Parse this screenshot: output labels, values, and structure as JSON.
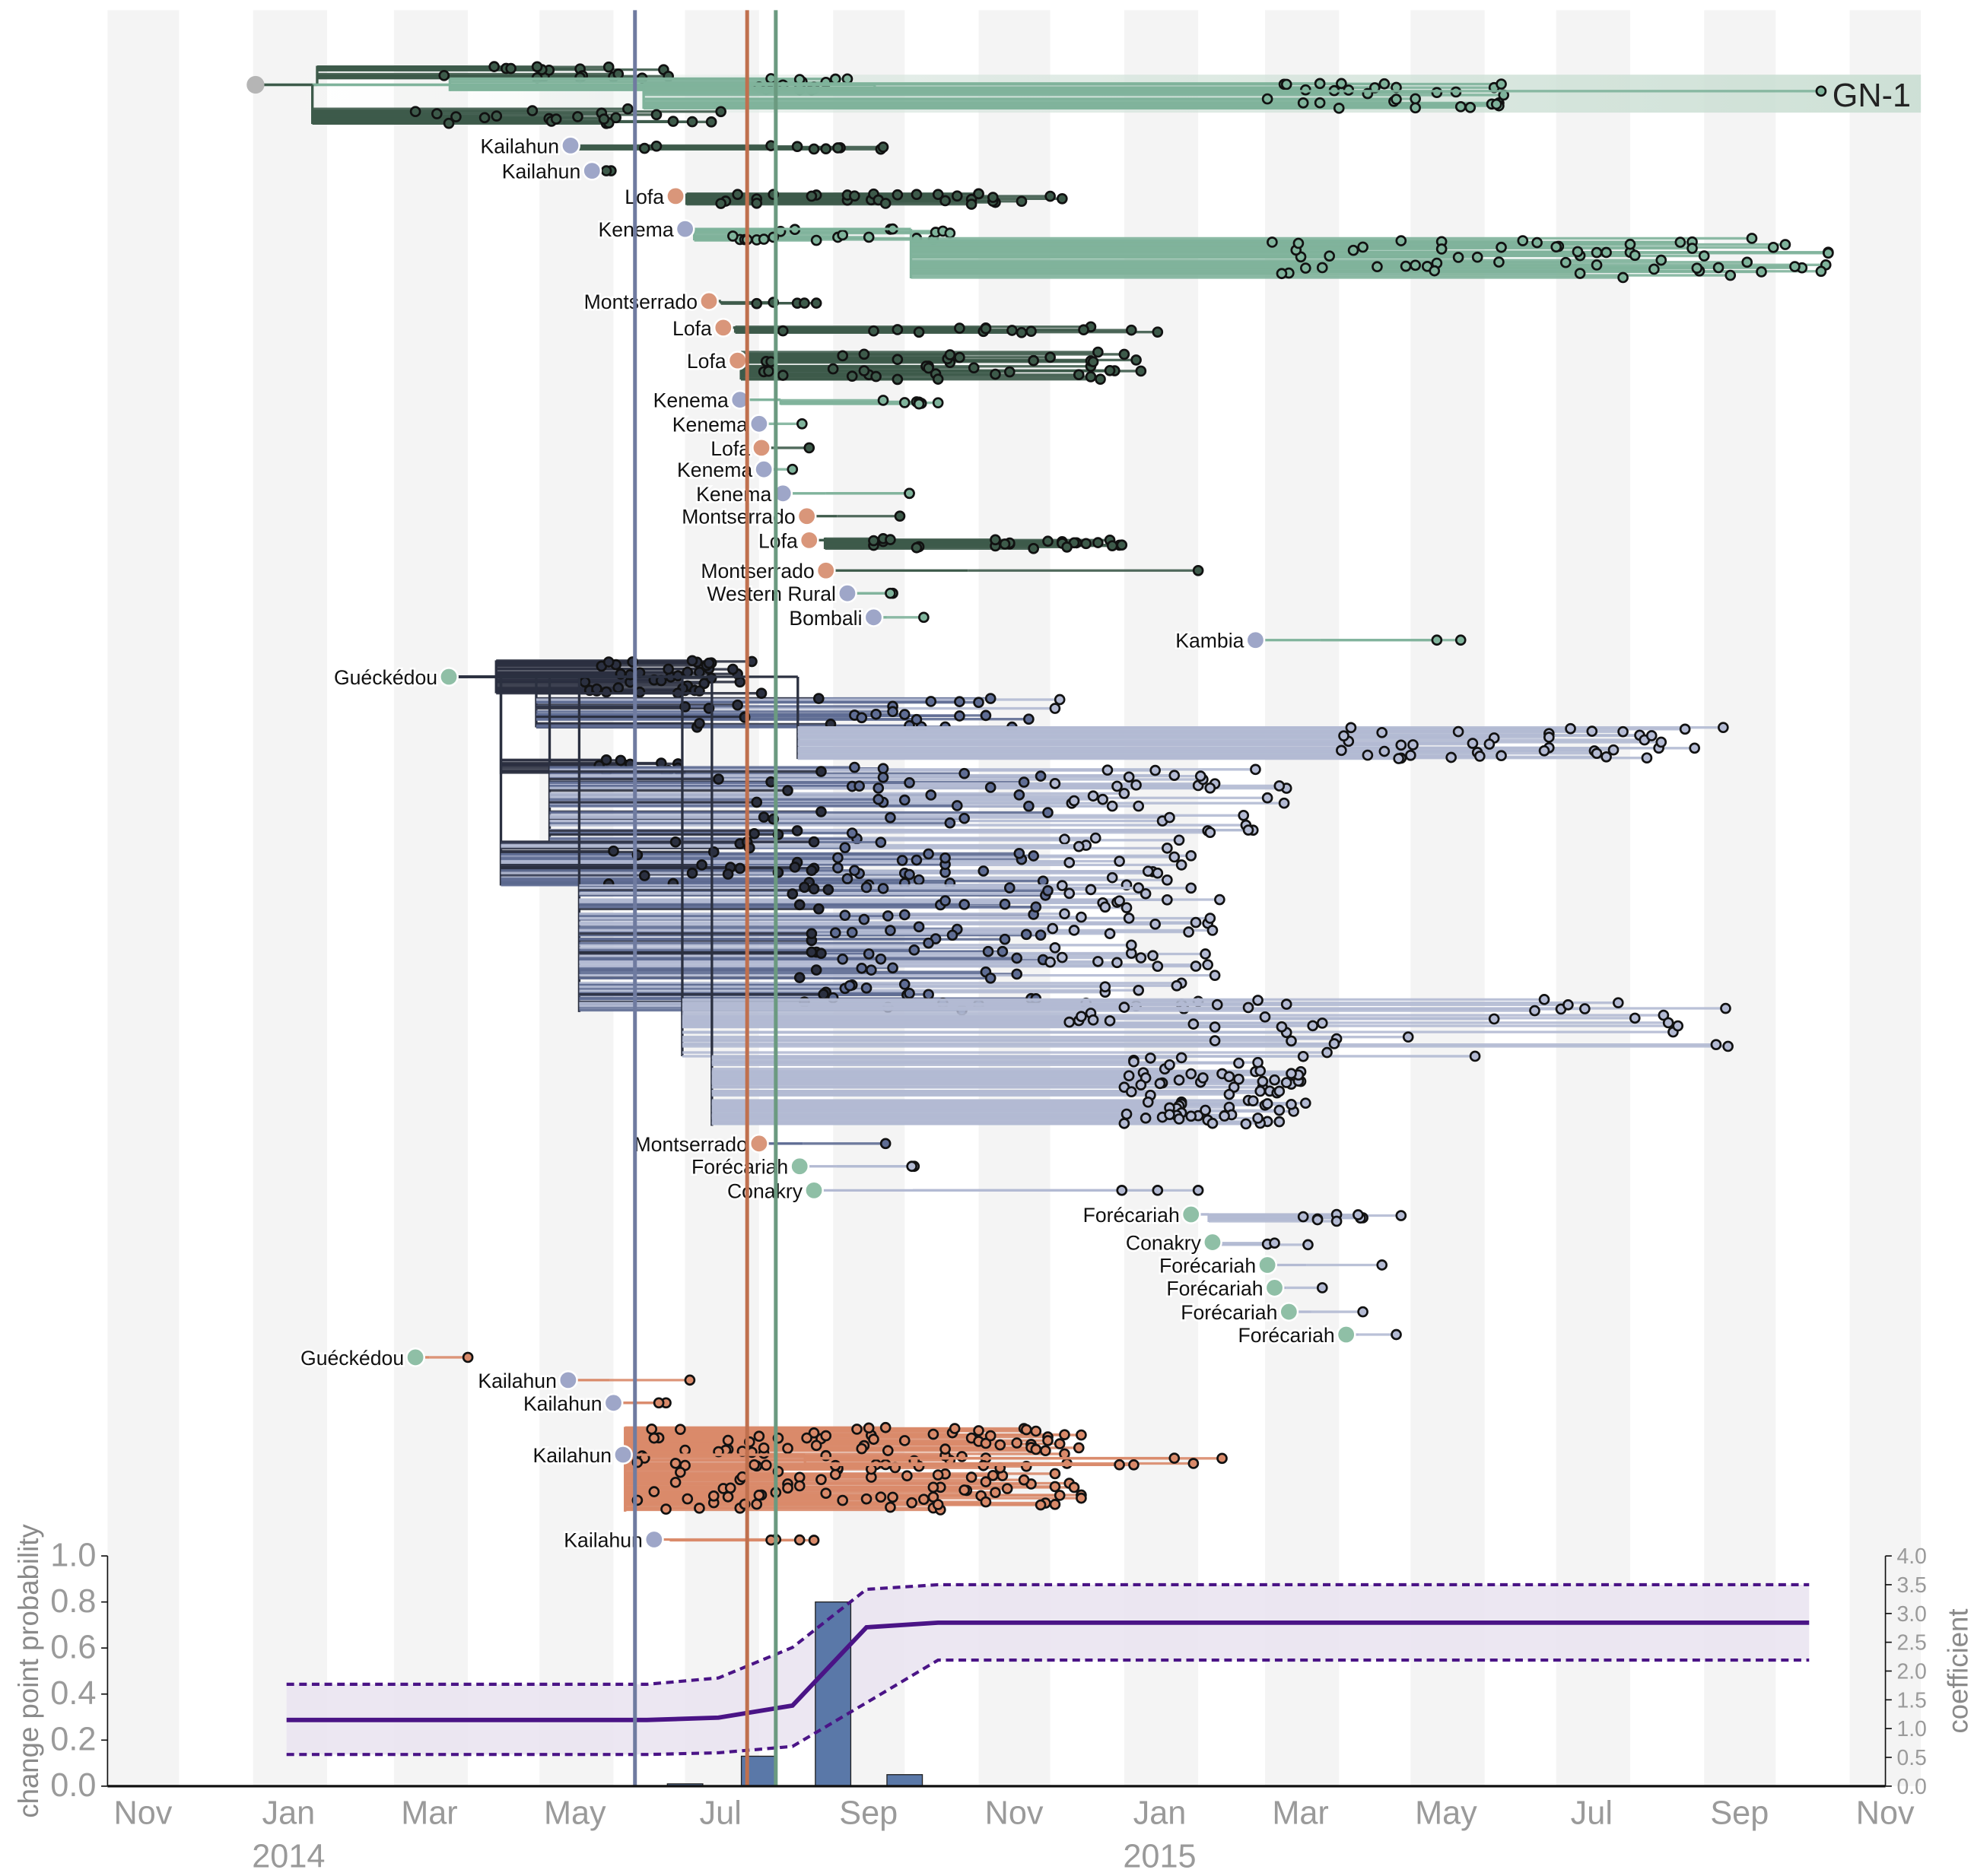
{
  "chart_data": [
    {
      "type": "tree",
      "x_axis": {
        "ticks": [
          {
            "date": "2013-11-01",
            "label": "Nov"
          },
          {
            "date": "2014-01-01",
            "label": "Jan"
          },
          {
            "date": "2014-03-01",
            "label": "Mar"
          },
          {
            "date": "2014-05-01",
            "label": "May"
          },
          {
            "date": "2014-07-01",
            "label": "Jul"
          },
          {
            "date": "2014-09-01",
            "label": "Sep"
          },
          {
            "date": "2014-11-01",
            "label": "Nov"
          },
          {
            "date": "2015-01-01",
            "label": "Jan"
          },
          {
            "date": "2015-03-01",
            "label": "Mar"
          },
          {
            "date": "2015-05-01",
            "label": "May"
          },
          {
            "date": "2015-07-01",
            "label": "Jul"
          },
          {
            "date": "2015-09-01",
            "label": "Sep"
          },
          {
            "date": "2015-11-01",
            "label": "Nov"
          }
        ],
        "years": [
          {
            "date": "2014-01-01",
            "label": "2014"
          },
          {
            "date": "2015-01-01",
            "label": "2015"
          }
        ],
        "range": [
          "2013-11-01",
          "2015-11-30"
        ],
        "month_stripes": true
      },
      "change_lines": [
        {
          "date": "2014-06-10",
          "color": "#6f7ba0"
        },
        {
          "date": "2014-07-27",
          "color": "#c0704e"
        },
        {
          "date": "2014-08-08",
          "color": "#6b9a80"
        }
      ],
      "colors": {
        "sierra_leone": "#9ea6c8",
        "liberia": "#d9967a",
        "guinea": "#8fbfa6",
        "root": "#b5b5b5",
        "dark_green": "#3d5a4a",
        "light_green": "#7fb39b",
        "navy": "#2b3040",
        "slate": "#5f6d94",
        "lavender": "#b3bad3",
        "orange": "#d98a6a"
      },
      "gn1": {
        "label": "GN-1",
        "origin": "2014-01-02",
        "groups": [
          {
            "from": "2014-03-15",
            "to": "2014-06-25",
            "n": 18,
            "color": "#3d5a4a"
          },
          {
            "from": "2014-08-01",
            "to": "2014-09-10",
            "n": 15,
            "color": "#7fb39b"
          },
          {
            "from": "2015-02-20",
            "to": "2015-06-10",
            "n": 30,
            "color": "#7fb39b"
          },
          {
            "from": "2015-10-20",
            "to": "2015-10-20",
            "n": 1,
            "color": "#7fb39b"
          },
          {
            "from": "2014-03-10",
            "to": "2014-07-20",
            "n": 22,
            "color": "#3d5a4a"
          }
        ]
      },
      "clades": [
        {
          "label": "Kailahun",
          "loc": "sierra_leone",
          "origin": "2014-05-14",
          "groups": [
            {
              "from": "2014-05-29",
              "to": "2014-09-29",
              "n": 10,
              "color": "#3d5a4a"
            }
          ]
        },
        {
          "label": "Kailahun",
          "loc": "sierra_leone",
          "origin": "2014-05-23",
          "groups": [
            {
              "from": "2014-05-29",
              "to": "2014-06-04",
              "n": 2,
              "color": "#3d5a4a"
            }
          ]
        },
        {
          "label": "Lofa",
          "loc": "liberia",
          "origin": "2014-06-27",
          "groups": [
            {
              "from": "2014-07-16",
              "to": "2014-12-10",
              "n": 30,
              "color": "#3d5a4a"
            }
          ]
        },
        {
          "label": "Kenema",
          "loc": "sierra_leone",
          "origin": "2014-07-01",
          "groups": [
            {
              "from": "2014-07-18",
              "to": "2014-10-24",
              "n": 20,
              "color": "#7fb39b"
            },
            {
              "from": "2015-03-02",
              "to": "2015-10-24",
              "n": 60,
              "color": "#7fb39b"
            }
          ]
        },
        {
          "label": "Montserrado",
          "loc": "liberia",
          "origin": "2014-07-11",
          "groups": [
            {
              "from": "2014-07-31",
              "to": "2014-09-21",
              "n": 5,
              "color": "#3d5a4a"
            }
          ]
        },
        {
          "label": "Lofa",
          "loc": "liberia",
          "origin": "2014-07-17",
          "groups": [
            {
              "from": "2014-08-06",
              "to": "2015-01-28",
              "n": 15,
              "color": "#3d5a4a"
            }
          ]
        },
        {
          "label": "Lofa",
          "loc": "liberia",
          "origin": "2014-07-23",
          "groups": [
            {
              "from": "2014-08-03",
              "to": "2015-01-13",
              "n": 40,
              "color": "#3d5a4a"
            }
          ]
        },
        {
          "label": "Kenema",
          "loc": "sierra_leone",
          "origin": "2014-07-24",
          "groups": [
            {
              "from": "2014-09-12",
              "to": "2014-10-19",
              "n": 7,
              "color": "#7fb39b"
            }
          ]
        },
        {
          "label": "Kenema",
          "loc": "sierra_leone",
          "origin": "2014-08-01",
          "groups": [
            {
              "from": "2014-08-19",
              "to": "2014-08-19",
              "n": 1,
              "color": "#7fb39b"
            }
          ]
        },
        {
          "label": "Lofa",
          "loc": "liberia",
          "origin": "2014-08-02",
          "groups": [
            {
              "from": "2014-08-22",
              "to": "2014-08-22",
              "n": 1,
              "color": "#3d5a4a"
            }
          ]
        },
        {
          "label": "Kenema",
          "loc": "sierra_leone",
          "origin": "2014-08-03",
          "groups": [
            {
              "from": "2014-08-15",
              "to": "2014-08-15",
              "n": 1,
              "color": "#7fb39b"
            }
          ]
        },
        {
          "label": "Kenema",
          "loc": "sierra_leone",
          "origin": "2014-08-11",
          "groups": [
            {
              "from": "2014-10-02",
              "to": "2014-10-04",
              "n": 2,
              "color": "#7fb39b"
            }
          ]
        },
        {
          "label": "Montserrado",
          "loc": "liberia",
          "origin": "2014-08-21",
          "groups": [
            {
              "from": "2014-09-29",
              "to": "2014-09-29",
              "n": 1,
              "color": "#3d5a4a"
            }
          ]
        },
        {
          "label": "Lofa",
          "loc": "liberia",
          "origin": "2014-08-22",
          "groups": [
            {
              "from": "2014-09-15",
              "to": "2015-01-05",
              "n": 25,
              "color": "#3d5a4a"
            }
          ]
        },
        {
          "label": "Montserrado",
          "loc": "liberia",
          "origin": "2014-08-29",
          "groups": [
            {
              "from": "2015-02-01",
              "to": "2015-02-01",
              "n": 1,
              "color": "#3d5a4a"
            }
          ]
        },
        {
          "label": "Western Rural",
          "loc": "sierra_leone",
          "origin": "2014-09-07",
          "groups": [
            {
              "from": "2014-09-24",
              "to": "2014-09-27",
              "n": 2,
              "color": "#7fb39b"
            }
          ]
        },
        {
          "label": "Bombali",
          "loc": "sierra_leone",
          "origin": "2014-09-18",
          "groups": [
            {
              "from": "2014-10-09",
              "to": "2014-10-09",
              "n": 1,
              "color": "#7fb39b"
            }
          ]
        },
        {
          "label": "Kambia",
          "loc": "sierra_leone",
          "origin": "2015-02-25",
          "groups": [
            {
              "from": "2015-05-11",
              "to": "2015-05-26",
              "n": 2,
              "color": "#7fb39b"
            }
          ]
        },
        {
          "label": "Guéckédou",
          "loc": "guinea",
          "origin": "2014-03-24",
          "groups": [
            {
              "from": "2014-05-20",
              "to": "2014-07-30",
              "n": 40,
              "color": "bydate"
            },
            {
              "from": "2014-07-01",
              "to": "2014-12-15",
              "n": 30,
              "color": "bydate"
            },
            {
              "from": "2015-04-01",
              "to": "2015-09-15",
              "n": 40,
              "color": "bydate"
            },
            {
              "from": "2014-05-25",
              "to": "2014-07-01",
              "n": 12,
              "color": "bydate"
            },
            {
              "from": "2014-07-15",
              "to": "2015-03-15",
              "n": 70,
              "color": "bydate"
            },
            {
              "from": "2014-05-25",
              "to": "2015-02-01",
              "n": 60,
              "color": "bydate"
            },
            {
              "from": "2014-08-15",
              "to": "2015-02-15",
              "n": 120,
              "color": "bydate"
            },
            {
              "from": "2014-12-01",
              "to": "2015-09-15",
              "n": 40,
              "color": "bydate"
            },
            {
              "from": "2015-01-01",
              "to": "2015-03-20",
              "n": 80,
              "color": "bydate"
            }
          ]
        },
        {
          "label": "Montserrado",
          "loc": "liberia",
          "origin": "2014-08-01",
          "groups": [
            {
              "from": "2014-09-23",
              "to": "2014-09-23",
              "n": 1,
              "color": "#5f6d94"
            }
          ]
        },
        {
          "label": "Forécariah",
          "loc": "guinea",
          "origin": "2014-08-18",
          "groups": [
            {
              "from": "2014-10-03",
              "to": "2014-10-06",
              "n": 2,
              "color": "#b3bad3"
            }
          ]
        },
        {
          "label": "Conakry",
          "loc": "guinea",
          "origin": "2014-08-24",
          "groups": [
            {
              "from": "2014-12-13",
              "to": "2015-02-07",
              "n": 3,
              "color": "#b3bad3"
            }
          ]
        },
        {
          "label": "Forécariah",
          "loc": "guinea",
          "origin": "2015-01-29",
          "groups": [
            {
              "from": "2015-02-24",
              "to": "2015-05-01",
              "n": 9,
              "color": "#b3bad3"
            }
          ]
        },
        {
          "label": "Conakry",
          "loc": "guinea",
          "origin": "2015-02-07",
          "groups": [
            {
              "from": "2015-02-24",
              "to": "2015-03-23",
              "n": 3,
              "color": "#b3bad3"
            }
          ]
        },
        {
          "label": "Forécariah",
          "loc": "guinea",
          "origin": "2015-03-02",
          "groups": [
            {
              "from": "2015-04-19",
              "to": "2015-04-19",
              "n": 1,
              "color": "#b3bad3"
            }
          ]
        },
        {
          "label": "Forécariah",
          "loc": "guinea",
          "origin": "2015-03-05",
          "groups": [
            {
              "from": "2015-03-25",
              "to": "2015-03-25",
              "n": 1,
              "color": "#b3bad3"
            }
          ]
        },
        {
          "label": "Forécariah",
          "loc": "guinea",
          "origin": "2015-03-11",
          "groups": [
            {
              "from": "2015-04-11",
              "to": "2015-04-11",
              "n": 1,
              "color": "#b3bad3"
            }
          ]
        },
        {
          "label": "Forécariah",
          "loc": "guinea",
          "origin": "2015-04-04",
          "groups": [
            {
              "from": "2015-04-25",
              "to": "2015-04-25",
              "n": 1,
              "color": "#b3bad3"
            }
          ]
        },
        {
          "label": "Guéckédou",
          "loc": "guinea",
          "origin": "2014-03-10",
          "groups": [
            {
              "from": "2014-04-01",
              "to": "2014-04-01",
              "n": 1,
              "color": "#d98a6a"
            }
          ]
        },
        {
          "label": "Kailahun",
          "loc": "sierra_leone",
          "origin": "2014-05-13",
          "groups": [
            {
              "from": "2014-07-03",
              "to": "2014-07-03",
              "n": 1,
              "color": "#d98a6a"
            }
          ]
        },
        {
          "label": "Kailahun",
          "loc": "sierra_leone",
          "origin": "2014-06-01",
          "groups": [
            {
              "from": "2014-06-19",
              "to": "2014-06-29",
              "n": 2,
              "color": "#d98a6a"
            }
          ]
        },
        {
          "label": "Kailahun",
          "loc": "sierra_leone",
          "origin": "2014-06-05",
          "groups": [
            {
              "from": "2014-06-11",
              "to": "2014-12-15",
              "n": 150,
              "color": "#d98a6a"
            },
            {
              "from": "2014-12-20",
              "to": "2015-02-16",
              "n": 5,
              "color": "#d98a6a"
            }
          ]
        },
        {
          "label": "Kailahun",
          "loc": "sierra_leone",
          "origin": "2014-06-18",
          "groups": [
            {
              "from": "2014-07-12",
              "to": "2014-08-25",
              "n": 4,
              "color": "#d98a6a"
            }
          ]
        }
      ]
    },
    {
      "type": "bar+line",
      "ylabel_left": "change point probability",
      "ylabel_right": "coefficient",
      "ylim_left": [
        0,
        1.0
      ],
      "ylim_right": [
        0,
        4.0
      ],
      "left_ticks": [
        "0.0",
        "0.2",
        "0.4",
        "0.6",
        "0.8",
        "1.0"
      ],
      "right_ticks": [
        "0.0",
        "0.5",
        "1.0",
        "1.5",
        "2.0",
        "2.5",
        "3.0",
        "3.5",
        "4.0"
      ],
      "bar_color": "#5a78a8",
      "line_color": "#4a1486",
      "band_color": "#e9e3f0",
      "bars": [
        {
          "date": "2014-07-01",
          "value": 0.01
        },
        {
          "date": "2014-08-01",
          "value": 0.13
        },
        {
          "date": "2014-09-01",
          "value": 0.8
        },
        {
          "date": "2014-10-01",
          "value": 0.05
        }
      ],
      "coefficient": {
        "dates": [
          "2014-01-15",
          "2014-02-15",
          "2014-03-15",
          "2014-04-15",
          "2014-05-15",
          "2014-06-15",
          "2014-07-15",
          "2014-08-15",
          "2014-09-15",
          "2014-10-15",
          "2014-11-15",
          "2014-12-15",
          "2015-01-15",
          "2015-02-15",
          "2015-03-15",
          "2015-04-15",
          "2015-05-15",
          "2015-06-15",
          "2015-07-15",
          "2015-08-15",
          "2015-09-15",
          "2015-10-15"
        ],
        "mean": [
          1.15,
          1.15,
          1.15,
          1.15,
          1.15,
          1.15,
          1.19,
          1.4,
          2.76,
          2.84,
          2.84,
          2.84,
          2.84,
          2.84,
          2.84,
          2.84,
          2.84,
          2.84,
          2.84,
          2.84,
          2.84,
          2.84
        ],
        "upper": [
          1.77,
          1.77,
          1.77,
          1.77,
          1.77,
          1.77,
          1.88,
          2.41,
          3.42,
          3.5,
          3.5,
          3.5,
          3.5,
          3.5,
          3.5,
          3.5,
          3.5,
          3.5,
          3.5,
          3.5,
          3.5,
          3.5
        ],
        "lower": [
          0.55,
          0.55,
          0.55,
          0.55,
          0.55,
          0.55,
          0.58,
          0.69,
          1.45,
          2.19,
          2.19,
          2.19,
          2.19,
          2.19,
          2.19,
          2.19,
          2.19,
          2.19,
          2.19,
          2.19,
          2.19,
          2.19
        ]
      }
    }
  ]
}
